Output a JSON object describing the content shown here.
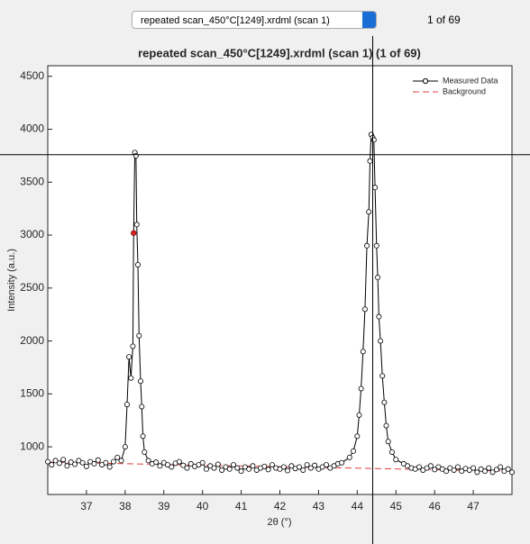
{
  "ui": {
    "dropdown": "repeated scan_450°C[1249].xrdml (scan 1)",
    "counter": "1 of 69"
  },
  "chart_data": {
    "type": "line",
    "title": "repeated scan_450°C[1249].xrdml (scan 1) (1 of 69)",
    "x_label": "2θ (°)",
    "y_label": "Intensity (a.u.)",
    "xlim": [
      36,
      48
    ],
    "ylim": [
      550,
      4600
    ],
    "xticks": [
      37,
      38,
      39,
      40,
      41,
      42,
      43,
      44,
      45,
      46,
      47
    ],
    "yticks": [
      1000,
      1500,
      2000,
      2500,
      3000,
      3500,
      4000,
      4500
    ],
    "grid": false,
    "legend": "northeast",
    "series": [
      {
        "name": "Measured Data",
        "color": "#000000",
        "x": [
          36.0,
          36.1,
          36.2,
          36.3,
          36.4,
          36.5,
          36.6,
          36.7,
          36.8,
          36.9,
          37.0,
          37.1,
          37.2,
          37.3,
          37.4,
          37.5,
          37.6,
          37.7,
          37.8,
          37.9,
          38.0,
          38.05,
          38.1,
          38.15,
          38.2,
          38.22,
          38.25,
          38.28,
          38.3,
          38.33,
          38.36,
          38.4,
          38.43,
          38.46,
          38.5,
          38.6,
          38.7,
          38.8,
          38.9,
          39.0,
          39.1,
          39.2,
          39.3,
          39.4,
          39.5,
          39.6,
          39.7,
          39.8,
          39.9,
          40.0,
          40.1,
          40.2,
          40.3,
          40.4,
          40.5,
          40.6,
          40.7,
          40.8,
          40.9,
          41.0,
          41.1,
          41.2,
          41.3,
          41.4,
          41.5,
          41.6,
          41.7,
          41.8,
          41.9,
          42.0,
          42.1,
          42.2,
          42.3,
          42.4,
          42.5,
          42.6,
          42.7,
          42.8,
          42.9,
          43.0,
          43.1,
          43.2,
          43.3,
          43.4,
          43.5,
          43.6,
          43.8,
          43.9,
          44.0,
          44.05,
          44.1,
          44.15,
          44.2,
          44.25,
          44.3,
          44.33,
          44.36,
          44.4,
          44.43,
          44.46,
          44.5,
          44.53,
          44.56,
          44.6,
          44.65,
          44.7,
          44.75,
          44.8,
          44.9,
          45.0,
          45.2,
          45.3,
          45.4,
          45.5,
          45.6,
          45.7,
          45.8,
          45.9,
          46.0,
          46.1,
          46.2,
          46.3,
          46.4,
          46.5,
          46.6,
          46.7,
          46.8,
          46.9,
          47.0,
          47.1,
          47.2,
          47.3,
          47.4,
          47.5,
          47.6,
          47.7,
          47.8,
          47.9,
          48.0
        ],
        "values": [
          860,
          830,
          870,
          845,
          880,
          820,
          855,
          835,
          870,
          850,
          815,
          860,
          840,
          875,
          830,
          850,
          810,
          860,
          900,
          870,
          1000,
          1400,
          1850,
          1650,
          1950,
          3020,
          3780,
          3750,
          3100,
          2720,
          2050,
          1620,
          1380,
          1100,
          950,
          870,
          840,
          855,
          820,
          850,
          830,
          810,
          845,
          860,
          825,
          800,
          840,
          815,
          830,
          850,
          790,
          820,
          800,
          835,
          780,
          810,
          790,
          830,
          800,
          770,
          810,
          790,
          820,
          780,
          800,
          815,
          785,
          830,
          800,
          790,
          810,
          775,
          820,
          795,
          810,
          780,
          830,
          800,
          825,
          790,
          810,
          830,
          800,
          820,
          840,
          850,
          900,
          960,
          1100,
          1300,
          1550,
          1900,
          2300,
          2900,
          3220,
          3700,
          3950,
          3920,
          3900,
          3450,
          2900,
          2600,
          2230,
          2000,
          1670,
          1420,
          1200,
          1050,
          950,
          880,
          840,
          820,
          800,
          790,
          810,
          780,
          800,
          820,
          785,
          810,
          790,
          770,
          800,
          780,
          810,
          770,
          795,
          780,
          800,
          760,
          790,
          770,
          800,
          760,
          785,
          810,
          770,
          790,
          760
        ]
      },
      {
        "name": "Background",
        "color": "#e03c3c",
        "x": [
          36,
          48
        ],
        "values": [
          855,
          770
        ]
      }
    ],
    "highlight": {
      "x": 38.22,
      "y": 3020,
      "color": "#e02020"
    },
    "cursor": {
      "x": 44.4,
      "y": 3760
    }
  }
}
